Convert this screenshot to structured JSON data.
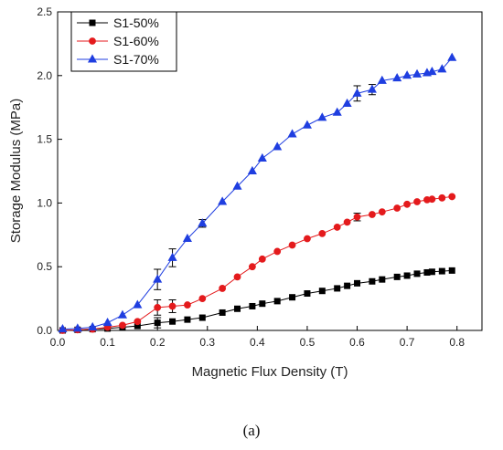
{
  "chart_data": {
    "type": "line",
    "xlabel": "Magnetic Flux Density (T)",
    "ylabel": "Storage Modulus (MPa)",
    "xlim": [
      0,
      0.85
    ],
    "ylim": [
      0,
      2.5
    ],
    "xticks": [
      0.0,
      0.1,
      0.2,
      0.3,
      0.4,
      0.5,
      0.6,
      0.7,
      0.8
    ],
    "xtick_labels": [
      "0.0",
      "0.1",
      "0.2",
      "0.3",
      "0.4",
      "0.5",
      "0.6",
      "0.7",
      "0.8"
    ],
    "yticks": [
      0.0,
      0.5,
      1.0,
      1.5,
      2.0,
      2.5
    ],
    "ytick_labels": [
      "0.0",
      "0.5",
      "1.0",
      "1.5",
      "2.0",
      "2.5"
    ],
    "grid": false,
    "legend_position": "top-left",
    "panel_label": "(a)",
    "series": [
      {
        "name": "S1-50%",
        "color": "#000000",
        "marker": "square",
        "x": [
          0.01,
          0.04,
          0.07,
          0.1,
          0.13,
          0.16,
          0.2,
          0.23,
          0.26,
          0.29,
          0.33,
          0.36,
          0.39,
          0.41,
          0.44,
          0.47,
          0.5,
          0.53,
          0.56,
          0.58,
          0.6,
          0.63,
          0.65,
          0.68,
          0.7,
          0.72,
          0.74,
          0.75,
          0.77,
          0.79
        ],
        "y": [
          0.0,
          0.005,
          0.01,
          0.015,
          0.025,
          0.035,
          0.06,
          0.07,
          0.085,
          0.1,
          0.14,
          0.17,
          0.19,
          0.21,
          0.23,
          0.26,
          0.29,
          0.31,
          0.33,
          0.35,
          0.37,
          0.385,
          0.4,
          0.42,
          0.43,
          0.445,
          0.455,
          0.46,
          0.465,
          0.47
        ],
        "errors": [
          {
            "x": 0.2,
            "y": 0.06,
            "e": 0.04
          }
        ]
      },
      {
        "name": "S1-60%",
        "color": "#e41a1c",
        "marker": "circle",
        "x": [
          0.01,
          0.04,
          0.07,
          0.1,
          0.13,
          0.16,
          0.2,
          0.23,
          0.26,
          0.29,
          0.33,
          0.36,
          0.39,
          0.41,
          0.44,
          0.47,
          0.5,
          0.53,
          0.56,
          0.58,
          0.6,
          0.63,
          0.65,
          0.68,
          0.7,
          0.72,
          0.74,
          0.75,
          0.77,
          0.79
        ],
        "y": [
          0.0,
          0.005,
          0.01,
          0.025,
          0.04,
          0.07,
          0.18,
          0.19,
          0.2,
          0.25,
          0.33,
          0.42,
          0.5,
          0.56,
          0.62,
          0.67,
          0.72,
          0.76,
          0.81,
          0.85,
          0.89,
          0.91,
          0.93,
          0.96,
          0.99,
          1.01,
          1.025,
          1.03,
          1.04,
          1.05
        ],
        "errors": [
          {
            "x": 0.2,
            "y": 0.18,
            "e": 0.06
          },
          {
            "x": 0.23,
            "y": 0.19,
            "e": 0.05
          },
          {
            "x": 0.6,
            "y": 0.89,
            "e": 0.03
          }
        ]
      },
      {
        "name": "S1-70%",
        "color": "#1f3ee0",
        "marker": "triangle",
        "x": [
          0.01,
          0.04,
          0.07,
          0.1,
          0.13,
          0.16,
          0.2,
          0.23,
          0.26,
          0.29,
          0.33,
          0.36,
          0.39,
          0.41,
          0.44,
          0.47,
          0.5,
          0.53,
          0.56,
          0.58,
          0.6,
          0.63,
          0.65,
          0.68,
          0.7,
          0.72,
          0.74,
          0.75,
          0.77,
          0.79
        ],
        "y": [
          0.01,
          0.015,
          0.025,
          0.06,
          0.12,
          0.2,
          0.4,
          0.57,
          0.72,
          0.84,
          1.01,
          1.13,
          1.25,
          1.35,
          1.44,
          1.54,
          1.61,
          1.67,
          1.71,
          1.78,
          1.86,
          1.89,
          1.96,
          1.98,
          2.0,
          2.01,
          2.02,
          2.03,
          2.05,
          2.14
        ],
        "errors": [
          {
            "x": 0.2,
            "y": 0.4,
            "e": 0.08
          },
          {
            "x": 0.23,
            "y": 0.57,
            "e": 0.07
          },
          {
            "x": 0.29,
            "y": 0.84,
            "e": 0.03
          },
          {
            "x": 0.6,
            "y": 1.86,
            "e": 0.06
          },
          {
            "x": 0.63,
            "y": 1.89,
            "e": 0.04
          }
        ]
      }
    ]
  }
}
